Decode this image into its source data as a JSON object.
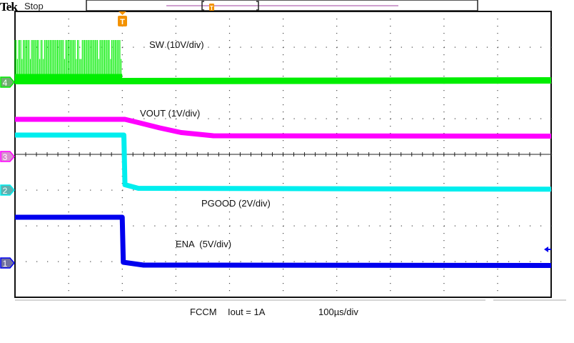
{
  "header": {
    "brand": "Tek",
    "status": "Stop"
  },
  "footer": {
    "mode": "FCCM",
    "current": "Iout = 1A",
    "timebase": "100µs/div"
  },
  "chart_data": {
    "type": "line",
    "xlabel": "",
    "ylabel": "",
    "x_unit": "µs",
    "timebase": "100µs/div",
    "divisions": {
      "x": 10,
      "y": 8
    },
    "xlim": [
      -200,
      800
    ],
    "grid": true,
    "trigger": {
      "label": "T",
      "color": "#f39200",
      "time": 0
    },
    "series": [
      {
        "name": "SW (10V/div)",
        "channel": "4",
        "color": "#00ee00",
        "marker_color": "#6fae6f",
        "scale_v_per_div": 10,
        "switching": {
          "from": -200,
          "to": 0,
          "high": 11.8,
          "low": 0.3
        },
        "points": [
          [
            -200,
            0.3
          ],
          [
            5,
            0.3
          ],
          [
            800,
            0.5
          ]
        ]
      },
      {
        "name": "VOUT (1V/div)",
        "channel": "3",
        "color": "#ff00ff",
        "marker_color": "#d98fd0",
        "scale_v_per_div": 1,
        "points": [
          [
            -200,
            1.04
          ],
          [
            5,
            1.04
          ],
          [
            30,
            0.95
          ],
          [
            70,
            0.8
          ],
          [
            110,
            0.67
          ],
          [
            170,
            0.58
          ],
          [
            800,
            0.57
          ]
        ]
      },
      {
        "name": "PGOOD (2V/div)",
        "channel": "2",
        "color": "#00eeee",
        "marker_color": "#5fb0b0",
        "scale_v_per_div": 2,
        "points": [
          [
            -200,
            3.08
          ],
          [
            3,
            3.08
          ],
          [
            5,
            0.3
          ],
          [
            30,
            0.1
          ],
          [
            800,
            0.05
          ]
        ]
      },
      {
        "name": "ENA  (5V/div)",
        "channel": "1",
        "color": "#0000ee",
        "marker_color": "#7070a0",
        "scale_v_per_div": 5,
        "points": [
          [
            -200,
            6.4
          ],
          [
            0,
            6.4
          ],
          [
            2,
            0.1
          ],
          [
            40,
            -0.3
          ],
          [
            800,
            -0.35
          ]
        ]
      }
    ]
  }
}
